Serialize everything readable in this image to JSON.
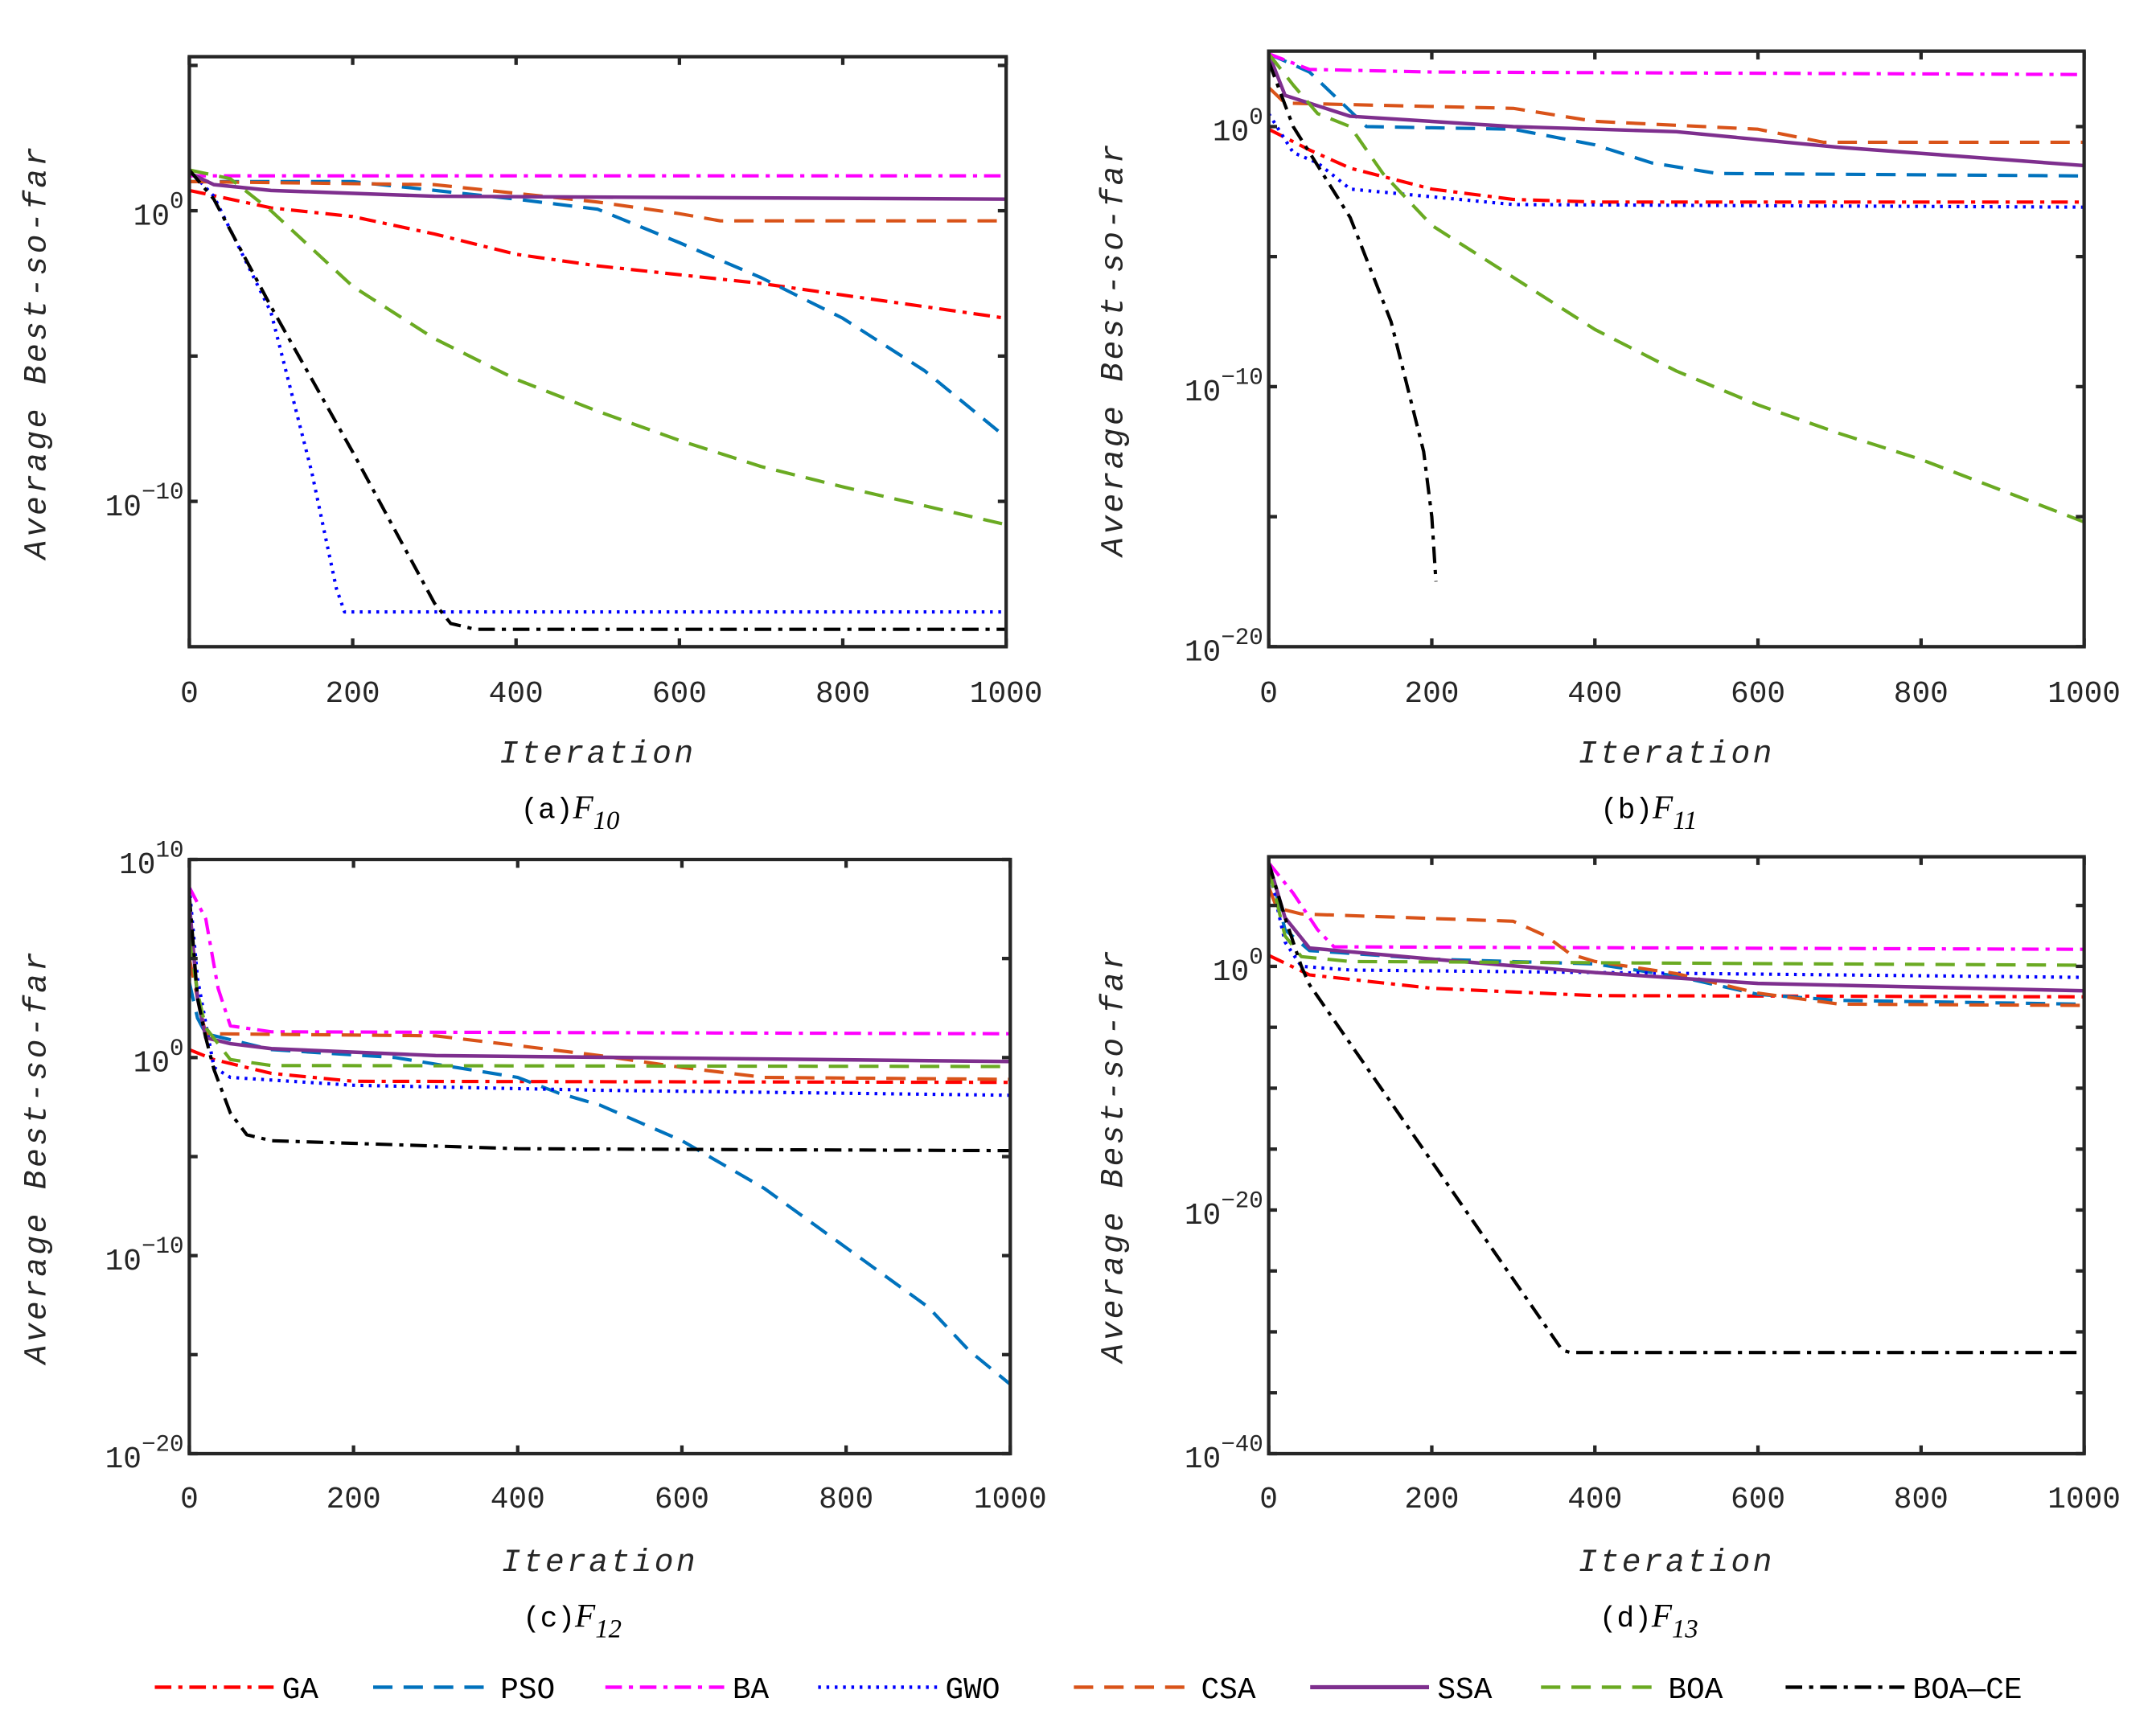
{
  "legend": [
    {
      "name": "GA",
      "color": "#FF0000",
      "style": "dashdot"
    },
    {
      "name": "PSO",
      "color": "#0072BD",
      "style": "dash"
    },
    {
      "name": "BA",
      "color": "#FF00FF",
      "style": "dashdot"
    },
    {
      "name": "GWO",
      "color": "#0000FF",
      "style": "dot"
    },
    {
      "name": "CSA",
      "color": "#D95319",
      "style": "dash"
    },
    {
      "name": "SSA",
      "color": "#7E2F8E",
      "style": "solid"
    },
    {
      "name": "BOA",
      "color": "#6AAA22",
      "style": "dash"
    },
    {
      "name": "BOA—CE",
      "color": "#000000",
      "style": "dashdot"
    }
  ],
  "chart_data": [
    {
      "type": "line",
      "yscale": "log",
      "caption_prefix": "(a)",
      "caption_func": "F",
      "caption_sub": "10",
      "xlabel": "Iteration",
      "ylabel": "Average Best-so-far",
      "xlim": [
        0,
        1000
      ],
      "xticks": [
        "0",
        "200",
        "400",
        "600",
        "800",
        "1000"
      ],
      "ylim_log10": [
        -15,
        5.3
      ],
      "ytick_exponents": [
        "0",
        "-10"
      ],
      "minor_tick_log10": [
        5,
        0,
        -5,
        -10
      ],
      "series": [
        {
          "name": "GA",
          "x": [
            0,
            100,
            200,
            300,
            400,
            500,
            600,
            700,
            800,
            1000
          ],
          "y_log10": [
            0.7,
            0.1,
            -0.2,
            -0.8,
            -1.5,
            -1.9,
            -2.2,
            -2.5,
            -2.9,
            -3.7
          ]
        },
        {
          "name": "PSO",
          "x": [
            0,
            200,
            400,
            500,
            600,
            700,
            800,
            900,
            1000
          ],
          "y_log10": [
            1.0,
            1.0,
            0.4,
            0.05,
            -1.1,
            -2.3,
            -3.7,
            -5.5,
            -7.8
          ]
        },
        {
          "name": "BA",
          "x": [
            0,
            1000
          ],
          "y_log10": [
            1.2,
            1.2
          ]
        },
        {
          "name": "GWO",
          "x": [
            0,
            30,
            100,
            150,
            180,
            190,
            1000
          ],
          "y_log10": [
            1.4,
            0.5,
            -3.5,
            -9,
            -13,
            -13.8,
            -13.8
          ]
        },
        {
          "name": "CSA",
          "x": [
            0,
            300,
            400,
            500,
            600,
            650,
            1000
          ],
          "y_log10": [
            1.0,
            0.9,
            0.6,
            0.3,
            -0.1,
            -0.35,
            -0.35
          ]
        },
        {
          "name": "SSA",
          "x": [
            0,
            30,
            100,
            300,
            1000
          ],
          "y_log10": [
            1.3,
            0.9,
            0.7,
            0.5,
            0.4
          ]
        },
        {
          "name": "BOA",
          "x": [
            0,
            50,
            100,
            200,
            300,
            400,
            500,
            600,
            700,
            800,
            1000
          ],
          "y_log10": [
            1.4,
            1.1,
            0.0,
            -2.6,
            -4.4,
            -5.8,
            -6.9,
            -7.9,
            -8.8,
            -9.5,
            -10.8
          ]
        },
        {
          "name": "BOA—CE",
          "x": [
            0,
            30,
            100,
            200,
            300,
            320,
            350,
            1000
          ],
          "y_log10": [
            1.4,
            0.4,
            -3.3,
            -8.3,
            -13.5,
            -14.2,
            -14.4,
            -14.4
          ]
        }
      ]
    },
    {
      "type": "line",
      "yscale": "log",
      "caption_prefix": "(b)",
      "caption_func": "F",
      "caption_sub": "11",
      "xlabel": "Iteration",
      "ylabel": "Average Best-so-far",
      "xlim": [
        0,
        1000
      ],
      "xticks": [
        "0",
        "200",
        "400",
        "600",
        "800",
        "1000"
      ],
      "ylim_log10": [
        -20,
        2.9
      ],
      "ytick_exponents": [
        "0",
        "-10",
        "-20"
      ],
      "minor_tick_log10": [
        0,
        -5,
        -10,
        -15,
        -20
      ],
      "series": [
        {
          "name": "GA",
          "x": [
            0,
            50,
            100,
            200,
            300,
            400,
            1000
          ],
          "y_log10": [
            -0.1,
            -0.9,
            -1.6,
            -2.4,
            -2.8,
            -2.9,
            -2.9
          ]
        },
        {
          "name": "PSO",
          "x": [
            0,
            50,
            80,
            120,
            300,
            400,
            470,
            550,
            1000
          ],
          "y_log10": [
            2.8,
            2.1,
            1.2,
            0,
            -0.1,
            -0.7,
            -1.4,
            -1.8,
            -1.9
          ]
        },
        {
          "name": "BA",
          "x": [
            0,
            50,
            200,
            1000
          ],
          "y_log10": [
            2.8,
            2.2,
            2.1,
            2.0
          ]
        },
        {
          "name": "GWO",
          "x": [
            0,
            30,
            60,
            100,
            200,
            300,
            1000
          ],
          "y_log10": [
            0.5,
            -1,
            -1.4,
            -2.4,
            -2.7,
            -3.0,
            -3.1
          ]
        },
        {
          "name": "CSA",
          "x": [
            0,
            20,
            300,
            400,
            600,
            680,
            1000
          ],
          "y_log10": [
            1.5,
            0.9,
            0.7,
            0.2,
            -0.1,
            -0.6,
            -0.6
          ]
        },
        {
          "name": "SSA",
          "x": [
            0,
            20,
            100,
            300,
            500,
            700,
            1000
          ],
          "y_log10": [
            2.8,
            1.2,
            0.4,
            0.0,
            -0.2,
            -0.8,
            -1.5
          ]
        },
        {
          "name": "BOA",
          "x": [
            0,
            30,
            60,
            100,
            140,
            200,
            300,
            400,
            500,
            600,
            700,
            800,
            1000
          ],
          "y_log10": [
            2.8,
            1.6,
            0.5,
            0,
            -1.8,
            -3.8,
            -5.8,
            -7.8,
            -9.4,
            -10.7,
            -11.8,
            -12.8,
            -15.2
          ]
        },
        {
          "name": "BOA—CE",
          "x": [
            0,
            30,
            60,
            100,
            150,
            190,
            200,
            205
          ],
          "y_log10": [
            2.5,
            0,
            -1.5,
            -3.5,
            -7.5,
            -12.5,
            -15,
            -17.5
          ]
        }
      ]
    },
    {
      "type": "line",
      "yscale": "log",
      "caption_prefix": "(c)",
      "caption_func": "F",
      "caption_sub": "12",
      "xlabel": "Iteration",
      "ylabel": "Average Best-so-far",
      "xlim": [
        0,
        1000
      ],
      "xticks": [
        "0",
        "200",
        "400",
        "600",
        "800",
        "1000"
      ],
      "ylim_log10": [
        -20,
        10
      ],
      "ytick_exponents": [
        "10",
        "0",
        "-10",
        "-20"
      ],
      "minor_tick_log10": [
        10,
        5,
        0,
        -5,
        -10,
        -15,
        -20
      ],
      "series": [
        {
          "name": "GA",
          "x": [
            0,
            30,
            100,
            200,
            1000
          ],
          "y_log10": [
            0.4,
            -0.1,
            -0.8,
            -1.2,
            -1.25
          ]
        },
        {
          "name": "PSO",
          "x": [
            0,
            10,
            20,
            100,
            250,
            400,
            450,
            500,
            600,
            700,
            800,
            900,
            950,
            1000
          ],
          "y_log10": [
            3.8,
            2,
            1.2,
            0.4,
            0,
            -1.0,
            -1.8,
            -2.4,
            -4.2,
            -6.6,
            -9.6,
            -12.6,
            -14.8,
            -16.5
          ]
        },
        {
          "name": "BA",
          "x": [
            0,
            20,
            35,
            50,
            100,
            1000
          ],
          "y_log10": [
            8.6,
            7,
            3.5,
            1.6,
            1.3,
            1.2
          ]
        },
        {
          "name": "GWO",
          "x": [
            0,
            10,
            30,
            50,
            200,
            500,
            1000
          ],
          "y_log10": [
            8.6,
            4,
            -0.5,
            -1.0,
            -1.4,
            -1.65,
            -1.9
          ]
        },
        {
          "name": "CSA",
          "x": [
            0,
            10,
            20,
            300,
            400,
            500,
            600,
            700,
            1000
          ],
          "y_log10": [
            5,
            3,
            1.2,
            1.1,
            0.6,
            0.1,
            -0.5,
            -1.0,
            -1.1
          ]
        },
        {
          "name": "SSA",
          "x": [
            0,
            10,
            20,
            50,
            100,
            300,
            1000
          ],
          "y_log10": [
            7.8,
            3,
            1.0,
            0.7,
            0.45,
            0.1,
            -0.2
          ]
        },
        {
          "name": "BOA",
          "x": [
            0,
            10,
            20,
            50,
            100,
            1000
          ],
          "y_log10": [
            6,
            3.3,
            1.5,
            -0.1,
            -0.4,
            -0.45
          ]
        },
        {
          "name": "BOA—CE",
          "x": [
            0,
            10,
            20,
            30,
            50,
            70,
            100,
            400,
            1000
          ],
          "y_log10": [
            8.2,
            3,
            1.0,
            -0.6,
            -2.8,
            -3.9,
            -4.2,
            -4.6,
            -4.7
          ]
        }
      ]
    },
    {
      "type": "line",
      "yscale": "log",
      "caption_prefix": "(d)",
      "caption_func": "F",
      "caption_sub": "13",
      "xlabel": "Iteration",
      "ylabel": "Average Best-so-far",
      "xlim": [
        0,
        1000
      ],
      "xticks": [
        "0",
        "200",
        "400",
        "600",
        "800",
        "1000"
      ],
      "ylim_log10": [
        -40,
        9
      ],
      "ytick_exponents": [
        "0",
        "-20",
        "-40"
      ],
      "minor_tick_log10": [
        5,
        0,
        -5,
        -10,
        -15,
        -20,
        -25,
        -30,
        -35,
        -40
      ],
      "series": [
        {
          "name": "GA",
          "x": [
            0,
            50,
            200,
            400,
            1000
          ],
          "y_log10": [
            0.9,
            -0.7,
            -1.8,
            -2.4,
            -2.5
          ]
        },
        {
          "name": "PSO",
          "x": [
            0,
            20,
            50,
            200,
            400,
            500,
            600,
            700,
            1000
          ],
          "y_log10": [
            8.5,
            3,
            1.3,
            0.6,
            0.2,
            -0.8,
            -2.3,
            -2.8,
            -3.1
          ]
        },
        {
          "name": "BA",
          "x": [
            0,
            30,
            60,
            80,
            1000
          ],
          "y_log10": [
            8.5,
            6,
            3,
            1.6,
            1.4
          ]
        },
        {
          "name": "GWO",
          "x": [
            0,
            20,
            40,
            100,
            1000
          ],
          "y_log10": [
            8,
            2,
            0,
            -0.3,
            -0.9
          ]
        },
        {
          "name": "CSA",
          "x": [
            0,
            10,
            40,
            300,
            340,
            370,
            400,
            500,
            600,
            700,
            1000
          ],
          "y_log10": [
            6.5,
            4.8,
            4.3,
            3.7,
            2.5,
            1.0,
            0.4,
            -0.6,
            -2.2,
            -3.1,
            -3.2
          ]
        },
        {
          "name": "SSA",
          "x": [
            0,
            20,
            50,
            200,
            400,
            600,
            1000
          ],
          "y_log10": [
            8.5,
            4,
            1.5,
            0.6,
            -0.5,
            -1.4,
            -2.0
          ]
        },
        {
          "name": "BOA",
          "x": [
            0,
            20,
            40,
            100,
            1000
          ],
          "y_log10": [
            8,
            2.5,
            0.8,
            0.4,
            0.1
          ]
        },
        {
          "name": "BOA—CE",
          "x": [
            0,
            20,
            40,
            50,
            360,
            370,
            1000
          ],
          "y_log10": [
            8.5,
            4,
            0,
            -1.5,
            -31.5,
            -31.7,
            -31.7
          ]
        }
      ]
    }
  ]
}
